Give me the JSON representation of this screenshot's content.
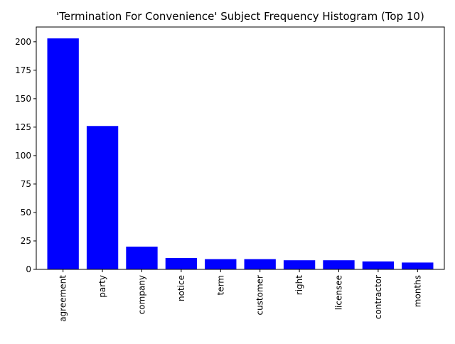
{
  "chart_data": {
    "type": "bar",
    "title": "'Termination For Convenience' Subject Frequency Histogram (Top 10)",
    "xlabel": "",
    "ylabel": "",
    "categories": [
      "agreement",
      "party",
      "company",
      "notice",
      "term",
      "customer",
      "right",
      "licensee",
      "contractor",
      "months"
    ],
    "values": [
      203,
      126,
      20,
      10,
      9,
      9,
      8,
      8,
      7,
      6
    ],
    "ylim": [
      0,
      213
    ],
    "yticks": [
      0,
      25,
      50,
      75,
      100,
      125,
      150,
      175,
      200
    ],
    "bar_color": "#0000ff",
    "grid": false,
    "legend": false
  }
}
